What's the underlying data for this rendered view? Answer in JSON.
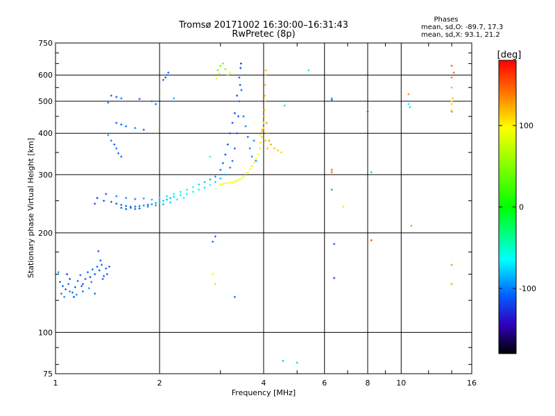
{
  "title": "Tromsø 20171002 16:30:00–16:31:43",
  "subtitle": "RwPretec (8p)",
  "stats": {
    "heading": "Phases",
    "line_o": "mean, sd,O: -89.7, 17.3",
    "line_x": "mean, sd,X:  93.1, 21.2"
  },
  "chart_data": {
    "type": "scatter",
    "xlabel": "Frequency [MHz]",
    "ylabel": "Stationary phase Virtual Height [km]",
    "x_scale": "log",
    "y_scale": "log",
    "xlim": [
      1,
      16
    ],
    "ylim": [
      75,
      750
    ],
    "x_ticks": [
      1,
      2,
      4,
      6,
      8,
      10,
      16
    ],
    "x_tick_labels": [
      "1",
      "2",
      "4",
      "6",
      "8",
      "10",
      "16"
    ],
    "y_ticks": [
      75,
      100,
      200,
      300,
      400,
      500,
      600,
      750
    ],
    "y_tick_labels": [
      "75",
      "100",
      "200",
      "300",
      "400",
      "500",
      "600",
      "750"
    ],
    "grid": true,
    "colorbar": {
      "label": "[deg]",
      "range": [
        -180,
        180
      ],
      "ticks": [
        100,
        0,
        -100
      ],
      "tick_labels": [
        "100",
        "0",
        "-100"
      ]
    },
    "points": [
      [
        1.03,
        142,
        -110
      ],
      [
        1.05,
        138,
        -115
      ],
      [
        1.07,
        135,
        -112
      ],
      [
        1.09,
        140,
        -108
      ],
      [
        1.1,
        145,
        -118
      ],
      [
        1.12,
        132,
        -105
      ],
      [
        1.14,
        137,
        -112
      ],
      [
        1.16,
        143,
        -115
      ],
      [
        1.18,
        149,
        -110
      ],
      [
        1.2,
        140,
        -118
      ],
      [
        1.22,
        145,
        -112
      ],
      [
        1.24,
        152,
        -108
      ],
      [
        1.26,
        147,
        -115
      ],
      [
        1.28,
        155,
        -110
      ],
      [
        1.3,
        150,
        -112
      ],
      [
        1.32,
        158,
        -108
      ],
      [
        1.34,
        154,
        -118
      ],
      [
        1.36,
        160,
        -110
      ],
      [
        1.38,
        148,
        -115
      ],
      [
        1.4,
        156,
        -110
      ],
      [
        1.04,
        131,
        -98
      ],
      [
        1.06,
        128,
        -95
      ],
      [
        1.1,
        133,
        -100
      ],
      [
        1.15,
        130,
        -96
      ],
      [
        1.2,
        133,
        -102
      ],
      [
        1.25,
        136,
        -95
      ],
      [
        1.3,
        131,
        -104
      ],
      [
        1.33,
        176,
        -112
      ],
      [
        1.35,
        165,
        -115
      ],
      [
        1.02,
        152,
        -95
      ],
      [
        1.08,
        150,
        -118
      ],
      [
        1.13,
        128,
        -120
      ],
      [
        1.19,
        138,
        -112
      ],
      [
        1.27,
        142,
        -100
      ],
      [
        1.37,
        145,
        -110
      ],
      [
        1.41,
        150,
        -108
      ],
      [
        1.43,
        158,
        -112
      ],
      [
        1.32,
        255,
        -118
      ],
      [
        1.38,
        250,
        -112
      ],
      [
        1.45,
        248,
        -108
      ],
      [
        1.5,
        245,
        -112
      ],
      [
        1.55,
        243,
        -104
      ],
      [
        1.6,
        241,
        -112
      ],
      [
        1.65,
        240,
        -100
      ],
      [
        1.7,
        240,
        -115
      ],
      [
        1.75,
        241,
        -106
      ],
      [
        1.8,
        242,
        -100
      ],
      [
        1.85,
        243,
        -110
      ],
      [
        1.9,
        244,
        -96
      ],
      [
        1.95,
        246,
        -90
      ],
      [
        2.0,
        248,
        -86
      ],
      [
        2.05,
        250,
        -80
      ],
      [
        2.1,
        252,
        -86
      ],
      [
        2.15,
        255,
        -76
      ],
      [
        2.2,
        257,
        -72
      ],
      [
        2.3,
        260,
        -66
      ],
      [
        2.4,
        262,
        -70
      ],
      [
        2.5,
        266,
        -60
      ],
      [
        2.6,
        270,
        -62
      ],
      [
        2.7,
        274,
        -70
      ],
      [
        2.8,
        279,
        -64
      ],
      [
        2.9,
        285,
        -72
      ],
      [
        3.0,
        292,
        -84
      ],
      [
        3.1,
        300,
        -90
      ],
      [
        3.2,
        315,
        -100
      ],
      [
        3.25,
        330,
        -108
      ],
      [
        3.3,
        360,
        -112
      ],
      [
        3.35,
        400,
        -115
      ],
      [
        3.38,
        450,
        -118
      ],
      [
        3.4,
        500,
        -112
      ],
      [
        3.42,
        560,
        -116
      ],
      [
        3.43,
        630,
        -118
      ],
      [
        3.44,
        650,
        -120
      ],
      [
        1.4,
        262,
        -112
      ],
      [
        1.5,
        258,
        -100
      ],
      [
        1.6,
        255,
        -96
      ],
      [
        1.7,
        253,
        -98
      ],
      [
        1.8,
        254,
        -94
      ],
      [
        1.9,
        252,
        -86
      ],
      [
        2.0,
        255,
        -80
      ],
      [
        2.1,
        258,
        -74
      ],
      [
        2.2,
        262,
        -66
      ],
      [
        2.3,
        266,
        -60
      ],
      [
        2.4,
        270,
        -56
      ],
      [
        2.5,
        275,
        -62
      ],
      [
        2.6,
        280,
        -74
      ],
      [
        2.7,
        285,
        -82
      ],
      [
        2.8,
        290,
        -88
      ],
      [
        2.9,
        296,
        -96
      ],
      [
        3.0,
        310,
        -104
      ],
      [
        3.05,
        325,
        -110
      ],
      [
        3.1,
        345,
        -112
      ],
      [
        3.15,
        370,
        -115
      ],
      [
        3.2,
        400,
        -118
      ],
      [
        3.25,
        430,
        -116
      ],
      [
        3.3,
        460,
        -120
      ],
      [
        3.35,
        520,
        -118
      ],
      [
        3.4,
        590,
        -112
      ],
      [
        3.45,
        540,
        -108
      ],
      [
        3.5,
        450,
        -104
      ],
      [
        3.55,
        420,
        -98
      ],
      [
        3.6,
        390,
        -104
      ],
      [
        3.65,
        360,
        -100
      ],
      [
        3.7,
        340,
        -96
      ],
      [
        3.75,
        380,
        -100
      ],
      [
        3.8,
        330,
        -102
      ],
      [
        1.55,
        238,
        -110
      ],
      [
        1.6,
        236,
        -115
      ],
      [
        1.65,
        238,
        -108
      ],
      [
        1.7,
        236,
        -104
      ],
      [
        1.75,
        237,
        -112
      ],
      [
        1.85,
        240,
        -100
      ],
      [
        1.95,
        242,
        -92
      ],
      [
        2.05,
        244,
        -84
      ],
      [
        2.15,
        247,
        -78
      ],
      [
        2.25,
        252,
        -70
      ],
      [
        2.35,
        255,
        -66
      ],
      [
        3.0,
        280,
        90
      ],
      [
        3.1,
        282,
        96
      ],
      [
        3.2,
        284,
        92
      ],
      [
        3.3,
        286,
        98
      ],
      [
        3.4,
        290,
        94
      ],
      [
        3.5,
        296,
        100
      ],
      [
        3.6,
        305,
        96
      ],
      [
        3.7,
        318,
        102
      ],
      [
        3.8,
        335,
        98
      ],
      [
        3.9,
        360,
        104
      ],
      [
        3.95,
        390,
        108
      ],
      [
        4.0,
        430,
        112
      ],
      [
        4.02,
        470,
        116
      ],
      [
        4.03,
        520,
        120
      ],
      [
        4.04,
        560,
        118
      ],
      [
        4.05,
        600,
        124
      ],
      [
        4.06,
        620,
        122
      ],
      [
        3.85,
        345,
        92
      ],
      [
        3.75,
        325,
        90
      ],
      [
        3.65,
        312,
        95
      ],
      [
        3.55,
        302,
        88
      ],
      [
        3.45,
        292,
        92
      ],
      [
        3.35,
        287,
        86
      ],
      [
        3.25,
        284,
        90
      ],
      [
        3.15,
        283,
        94
      ],
      [
        3.05,
        281,
        92
      ],
      [
        3.92,
        375,
        110
      ],
      [
        3.97,
        410,
        118
      ],
      [
        4.01,
        450,
        124
      ],
      [
        4.04,
        500,
        130
      ],
      [
        4.08,
        430,
        128
      ],
      [
        4.1,
        400,
        134
      ],
      [
        4.15,
        380,
        130
      ],
      [
        4.2,
        370,
        126
      ],
      [
        4.3,
        360,
        120
      ],
      [
        4.4,
        355,
        116
      ],
      [
        4.5,
        350,
        110
      ],
      [
        3.9,
        395,
        100
      ],
      [
        3.95,
        405,
        108
      ],
      [
        4.0,
        415,
        112
      ],
      [
        4.05,
        380,
        118
      ],
      [
        4.1,
        360,
        122
      ],
      [
        2.95,
        620,
        40
      ],
      [
        3.0,
        640,
        44
      ],
      [
        3.05,
        650,
        38
      ],
      [
        3.1,
        625,
        46
      ],
      [
        3.15,
        600,
        42
      ],
      [
        2.98,
        605,
        70
      ],
      [
        3.2,
        610,
        88
      ],
      [
        2.92,
        585,
        100
      ],
      [
        1.55,
        340,
        -110
      ],
      [
        1.5,
        360,
        -104
      ],
      [
        1.45,
        380,
        -100
      ],
      [
        1.42,
        395,
        -96
      ],
      [
        1.52,
        348,
        -112
      ],
      [
        1.48,
        370,
        -108
      ],
      [
        1.5,
        430,
        -108
      ],
      [
        1.55,
        425,
        -112
      ],
      [
        1.6,
        420,
        -104
      ],
      [
        1.7,
        415,
        -96
      ],
      [
        1.8,
        410,
        -110
      ],
      [
        1.45,
        520,
        -104
      ],
      [
        1.5,
        515,
        -108
      ],
      [
        1.55,
        510,
        -100
      ],
      [
        1.75,
        508,
        -112
      ],
      [
        1.9,
        500,
        -110
      ],
      [
        1.95,
        490,
        -104
      ],
      [
        1.42,
        495,
        -100
      ],
      [
        2.05,
        580,
        -104
      ],
      [
        2.1,
        600,
        -100
      ],
      [
        2.12,
        610,
        -108
      ],
      [
        2.08,
        590,
        -112
      ],
      [
        2.2,
        510,
        -84
      ],
      [
        1.3,
        245,
        -112
      ],
      [
        2.8,
        340,
        -64
      ],
      [
        2.9,
        195,
        -110
      ],
      [
        2.85,
        188,
        -104
      ],
      [
        2.85,
        150,
        100
      ],
      [
        2.9,
        140,
        112
      ],
      [
        3.3,
        128,
        -104
      ],
      [
        4.6,
        485,
        -72
      ],
      [
        4.55,
        82,
        -78
      ],
      [
        5.0,
        81,
        -80
      ],
      [
        5.4,
        620,
        -70
      ],
      [
        6.3,
        510,
        -80
      ],
      [
        6.3,
        505,
        -110
      ],
      [
        6.3,
        310,
        144
      ],
      [
        6.3,
        305,
        140
      ],
      [
        6.3,
        270,
        -90
      ],
      [
        6.4,
        185,
        -110
      ],
      [
        6.4,
        146,
        -118
      ],
      [
        6.8,
        240,
        104
      ],
      [
        8.0,
        465,
        -116
      ],
      [
        8.2,
        305,
        -76
      ],
      [
        8.2,
        190,
        150
      ],
      [
        10.5,
        525,
        132
      ],
      [
        10.6,
        480,
        -76
      ],
      [
        10.5,
        490,
        -72
      ],
      [
        10.7,
        210,
        132
      ],
      [
        14.0,
        640,
        150
      ],
      [
        14.2,
        610,
        146
      ],
      [
        14.0,
        590,
        142
      ],
      [
        14.0,
        550,
        120
      ],
      [
        14.1,
        510,
        116
      ],
      [
        14.0,
        500,
        112
      ],
      [
        14.0,
        490,
        108
      ],
      [
        14.0,
        470,
        104
      ],
      [
        14.0,
        465,
        140
      ],
      [
        14.0,
        160,
        136
      ],
      [
        14.0,
        140,
        128
      ]
    ]
  }
}
